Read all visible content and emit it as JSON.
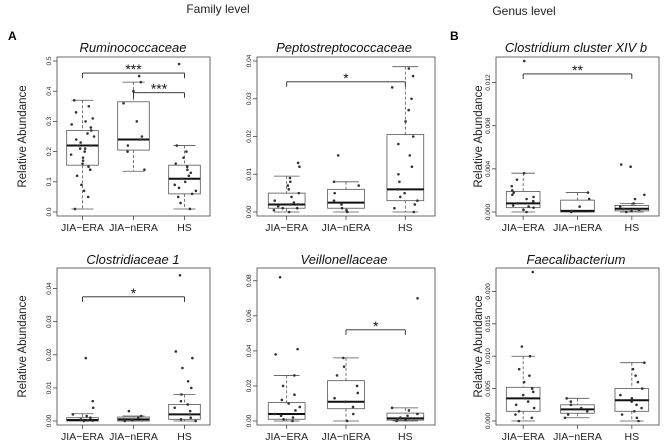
{
  "headers": {
    "family": "Family level",
    "genus": "Genus level"
  },
  "panel_letters": {
    "a": "A",
    "b": "B"
  },
  "chart_data": [
    {
      "type": "box",
      "title": "Ruminococcaceae",
      "ylabel": "Relative Abundance",
      "categories": [
        "JIA−ERA",
        "JIA−nERA",
        "HS"
      ],
      "ylim": [
        0,
        0.5
      ],
      "yticks": [
        0.0,
        0.1,
        0.2,
        0.3,
        0.4,
        0.5
      ],
      "ytick_labels": [
        "0.0",
        "0.1",
        "0.2",
        "0.3",
        "0.4",
        "0.5"
      ],
      "boxes": [
        {
          "min": 0.01,
          "q1": 0.155,
          "median": 0.22,
          "q3": 0.27,
          "max": 0.37
        },
        {
          "min": 0.135,
          "q1": 0.205,
          "median": 0.24,
          "q3": 0.365,
          "max": 0.43
        },
        {
          "min": 0.01,
          "q1": 0.06,
          "median": 0.11,
          "q3": 0.155,
          "max": 0.22
        }
      ],
      "points": [
        [
          0.01,
          0.05,
          0.07,
          0.09,
          0.12,
          0.14,
          0.15,
          0.16,
          0.17,
          0.18,
          0.19,
          0.2,
          0.21,
          0.21,
          0.22,
          0.22,
          0.23,
          0.24,
          0.25,
          0.26,
          0.27,
          0.28,
          0.29,
          0.3,
          0.31,
          0.33,
          0.35,
          0.37
        ],
        [
          0.14,
          0.2,
          0.22,
          0.24,
          0.25,
          0.3,
          0.36,
          0.4,
          0.43,
          0.45
        ],
        [
          0.01,
          0.03,
          0.05,
          0.06,
          0.07,
          0.08,
          0.09,
          0.1,
          0.11,
          0.12,
          0.13,
          0.14,
          0.15,
          0.16,
          0.18,
          0.2,
          0.22,
          0.49
        ]
      ],
      "significance": [
        {
          "from": 0,
          "to": 2,
          "label": "***",
          "y": 0.46
        },
        {
          "from": 1,
          "to": 2,
          "label": "***",
          "y": 0.395
        }
      ]
    },
    {
      "type": "box",
      "title": "Peptostreptococcaceae",
      "ylabel": "",
      "categories": [
        "JIA−ERA",
        "JIA−nERA",
        "HS"
      ],
      "ylim": [
        0,
        0.04
      ],
      "yticks": [
        0.0,
        0.01,
        0.02,
        0.03,
        0.04
      ],
      "ytick_labels": [
        "0.00",
        "0.01",
        "0.02",
        "0.03",
        "0.04"
      ],
      "boxes": [
        {
          "min": 0.0,
          "q1": 0.001,
          "median": 0.002,
          "q3": 0.005,
          "max": 0.0095
        },
        {
          "min": 0.0,
          "q1": 0.001,
          "median": 0.0025,
          "q3": 0.006,
          "max": 0.008
        },
        {
          "min": 0.0,
          "q1": 0.003,
          "median": 0.006,
          "q3": 0.0205,
          "max": 0.0385
        }
      ],
      "points": [
        [
          0.0,
          0.0005,
          0.001,
          0.001,
          0.0015,
          0.002,
          0.002,
          0.0025,
          0.003,
          0.004,
          0.005,
          0.006,
          0.007,
          0.008,
          0.009,
          0.012,
          0.013
        ],
        [
          0.0,
          0.0005,
          0.001,
          0.002,
          0.003,
          0.005,
          0.007,
          0.008,
          0.015
        ],
        [
          0.0,
          0.001,
          0.002,
          0.003,
          0.004,
          0.005,
          0.006,
          0.008,
          0.01,
          0.012,
          0.015,
          0.018,
          0.02,
          0.024,
          0.027,
          0.03,
          0.033,
          0.036,
          0.038
        ]
      ],
      "significance": [
        {
          "from": 0,
          "to": 2,
          "label": "*",
          "y": 0.0345
        }
      ]
    },
    {
      "type": "box",
      "title": "Clostridium cluster XIV b",
      "ylabel": "Relative Abundance",
      "categories": [
        "JIA−ERA",
        "JIA−nERA",
        "HS"
      ],
      "ylim": [
        0,
        0.014
      ],
      "yticks": [
        0.0,
        0.004,
        0.008,
        0.012
      ],
      "ytick_labels": [
        "0.000",
        "0.004",
        "0.008",
        "0.012"
      ],
      "boxes": [
        {
          "min": 0.0,
          "q1": 0.0004,
          "median": 0.0008,
          "q3": 0.0019,
          "max": 0.0036
        },
        {
          "min": 0.0,
          "q1": 0.0,
          "median": 0.0001,
          "q3": 0.0011,
          "max": 0.0018
        },
        {
          "min": 0.0,
          "q1": 0.0001,
          "median": 0.0003,
          "q3": 0.0006,
          "max": 0.0008
        }
      ],
      "points": [
        [
          0.0,
          0.0002,
          0.0004,
          0.0005,
          0.0006,
          0.0008,
          0.001,
          0.0012,
          0.0014,
          0.0016,
          0.0018,
          0.002,
          0.0024,
          0.003,
          0.0036,
          0.014
        ],
        [
          0.0,
          0.0001,
          0.0005,
          0.0012,
          0.0018
        ],
        [
          0.0,
          0.0001,
          0.0002,
          0.0003,
          0.0005,
          0.0008,
          0.0012,
          0.0016,
          0.0042,
          0.0044
        ]
      ],
      "significance": [
        {
          "from": 0,
          "to": 2,
          "label": "**",
          "y": 0.0128
        }
      ]
    },
    {
      "type": "box",
      "title": "Clostridiaceae 1",
      "ylabel": "Relative Abundance",
      "categories": [
        "JIA−ERA",
        "JIA−nERA",
        "HS"
      ],
      "ylim": [
        0,
        0.045
      ],
      "yticks": [
        0.0,
        0.01,
        0.02,
        0.03,
        0.04
      ],
      "ytick_labels": [
        "0.00",
        "0.01",
        "0.02",
        "0.03",
        "0.04"
      ],
      "boxes": [
        {
          "min": 0.0,
          "q1": 0.0,
          "median": 0.0003,
          "q3": 0.001,
          "max": 0.0022
        },
        {
          "min": 0.0,
          "q1": 0.0,
          "median": 0.0005,
          "q3": 0.0012,
          "max": 0.0015
        },
        {
          "min": 0.0,
          "q1": 0.0005,
          "median": 0.002,
          "q3": 0.005,
          "max": 0.008
        }
      ],
      "points": [
        [
          0.0,
          0.0001,
          0.0002,
          0.0003,
          0.0005,
          0.001,
          0.0015,
          0.002,
          0.004,
          0.006,
          0.019
        ],
        [
          0.0,
          0.0002,
          0.0005,
          0.001,
          0.0015,
          0.003
        ],
        [
          0.0,
          0.0005,
          0.001,
          0.002,
          0.003,
          0.004,
          0.005,
          0.006,
          0.008,
          0.01,
          0.012,
          0.016,
          0.019,
          0.021,
          0.044
        ]
      ],
      "significance": [
        {
          "from": 0,
          "to": 2,
          "label": "*",
          "y": 0.0375
        }
      ]
    },
    {
      "type": "box",
      "title": "Veillonellaceae",
      "ylabel": "",
      "categories": [
        "JIA−ERA",
        "JIA−nERA",
        "HS"
      ],
      "ylim": [
        0,
        0.085
      ],
      "yticks": [
        0.0,
        0.02,
        0.04,
        0.06,
        0.08
      ],
      "ytick_labels": [
        "0.00",
        "0.02",
        "0.04",
        "0.06",
        "0.08"
      ],
      "boxes": [
        {
          "min": 0.0,
          "q1": 0.001,
          "median": 0.004,
          "q3": 0.0105,
          "max": 0.026
        },
        {
          "min": 0.0,
          "q1": 0.007,
          "median": 0.011,
          "q3": 0.023,
          "max": 0.036
        },
        {
          "min": 0.0,
          "q1": 0.0005,
          "median": 0.0015,
          "q3": 0.0045,
          "max": 0.0075
        }
      ],
      "points": [
        [
          0.0,
          0.001,
          0.002,
          0.003,
          0.004,
          0.006,
          0.008,
          0.01,
          0.012,
          0.015,
          0.02,
          0.026,
          0.038,
          0.041,
          0.082
        ],
        [
          0.0,
          0.004,
          0.008,
          0.011,
          0.013,
          0.016,
          0.02,
          0.026,
          0.031,
          0.036
        ],
        [
          0.0,
          0.0005,
          0.001,
          0.002,
          0.003,
          0.004,
          0.006,
          0.0075,
          0.07
        ]
      ],
      "significance": [
        {
          "from": 1,
          "to": 2,
          "label": "*",
          "y": 0.052
        }
      ]
    },
    {
      "type": "box",
      "title": "Faecalibacterium",
      "ylabel": "Relative Abundance",
      "categories": [
        "JIA−ERA",
        "JIA−nERA",
        "HS"
      ],
      "ylim": [
        0,
        0.023
      ],
      "yticks": [
        0.0,
        0.005,
        0.01,
        0.015,
        0.02
      ],
      "ytick_labels": [
        "0.000",
        "0.005",
        "0.010",
        "0.015",
        "0.020"
      ],
      "boxes": [
        {
          "min": 0.0,
          "q1": 0.0015,
          "median": 0.0035,
          "q3": 0.0052,
          "max": 0.01
        },
        {
          "min": 0.0005,
          "q1": 0.0012,
          "median": 0.0018,
          "q3": 0.0025,
          "max": 0.0035
        },
        {
          "min": 0.0,
          "q1": 0.0015,
          "median": 0.0032,
          "q3": 0.005,
          "max": 0.009
        }
      ],
      "points": [
        [
          0.0,
          0.0005,
          0.001,
          0.0015,
          0.002,
          0.0025,
          0.003,
          0.0035,
          0.004,
          0.0045,
          0.005,
          0.006,
          0.007,
          0.008,
          0.01,
          0.0115,
          0.023
        ],
        [
          0.0005,
          0.001,
          0.0015,
          0.002,
          0.0025,
          0.003,
          0.0035
        ],
        [
          0.0,
          0.0005,
          0.001,
          0.0015,
          0.002,
          0.0025,
          0.003,
          0.0035,
          0.004,
          0.005,
          0.006,
          0.007,
          0.008,
          0.009
        ]
      ],
      "significance": []
    }
  ]
}
